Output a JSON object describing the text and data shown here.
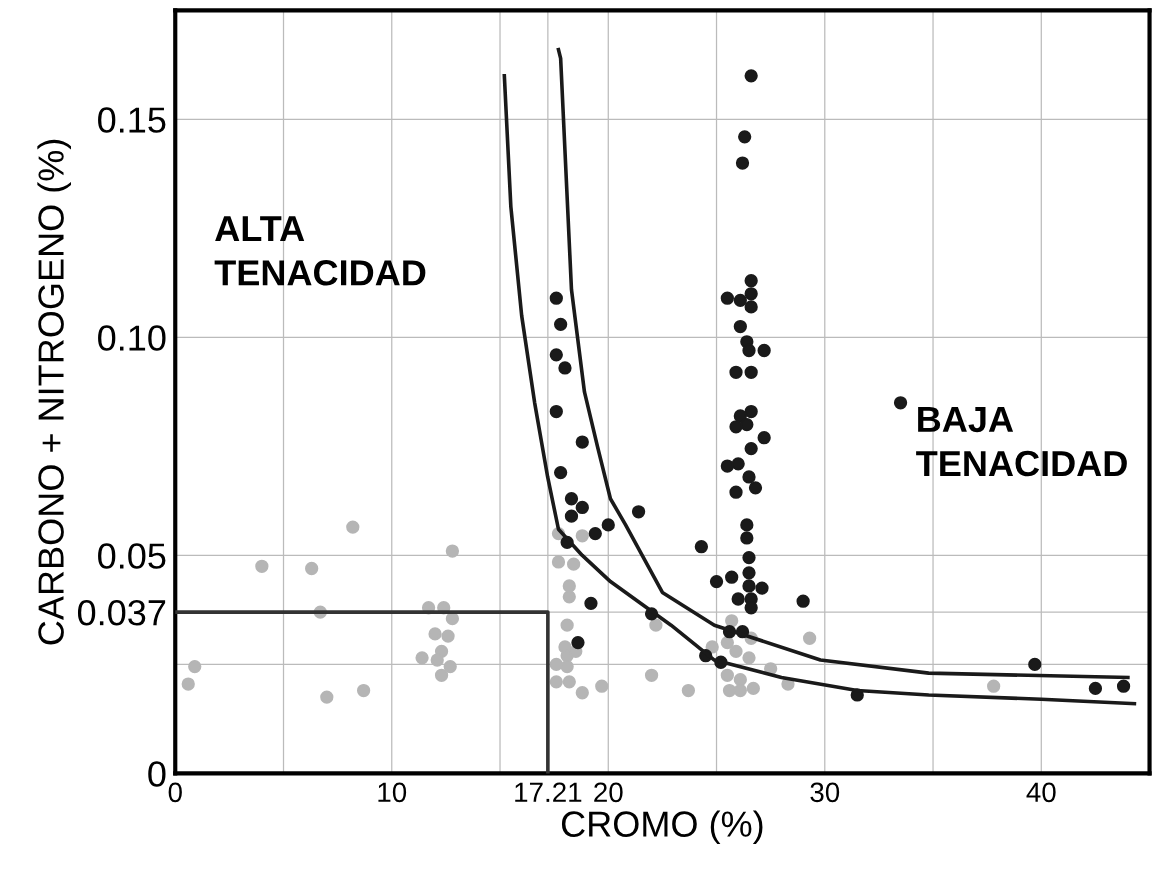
{
  "chart_data": {
    "type": "scatter",
    "xlabel": "CROMO (%)",
    "ylabel": "CARBONO + NITROGENO (%)",
    "xlim": [
      0,
      45
    ],
    "ylim": [
      0,
      0.175
    ],
    "xticks": [
      0,
      {
        "value": 5,
        "label": null
      },
      10,
      {
        "value": 15,
        "label": null
      },
      17.21,
      20,
      {
        "value": 25,
        "label": null
      },
      30,
      {
        "value": 35,
        "label": null
      },
      40
    ],
    "yticks": [
      0,
      {
        "value": 0.025,
        "label": null
      },
      0.037,
      0.05,
      {
        "value": 0.1,
        "label": "0.10"
      },
      0.15
    ],
    "grid": true,
    "annotations": [
      "ALTA\nTENACIDAD",
      "BAJA\nTENACIDAD"
    ],
    "series": [
      {
        "color": "#b5b5b5",
        "marker": "circle",
        "x": [
          8.2,
          12.8,
          4.0,
          6.3,
          6.7,
          11.7,
          12.4,
          12.8,
          12.0,
          12.6,
          12.3,
          11.4,
          12.1,
          12.7,
          12.3,
          0.9,
          0.6,
          8.7,
          7.0,
          17.7,
          18.4,
          18.2,
          18.2,
          18.1,
          18.0,
          18.1,
          18.5,
          17.6,
          18.1,
          17.6,
          18.2,
          18.8,
          17.7,
          22.2,
          22.0,
          19.7,
          18.8,
          25.7,
          25.5,
          24.8,
          25.9,
          26.5,
          26.6,
          27.5,
          25.5,
          26.1,
          26.7,
          25.6,
          26.1,
          23.7,
          28.3,
          29.3,
          37.8
        ],
        "values": [
          0.0565,
          0.051,
          0.0475,
          0.047,
          0.037,
          0.038,
          0.038,
          0.0355,
          0.032,
          0.0315,
          0.028,
          0.0265,
          0.026,
          0.0245,
          0.0225,
          0.0245,
          0.0205,
          0.019,
          0.0175,
          0.0485,
          0.048,
          0.043,
          0.0405,
          0.034,
          0.029,
          0.027,
          0.028,
          0.025,
          0.0245,
          0.021,
          0.021,
          0.0545,
          0.055,
          0.034,
          0.0225,
          0.02,
          0.0185,
          0.035,
          0.03,
          0.029,
          0.028,
          0.0265,
          0.031,
          0.024,
          0.0225,
          0.0215,
          0.0195,
          0.019,
          0.019,
          0.019,
          0.0205,
          0.031,
          0.02
        ]
      },
      {
        "color": "#1a1a1a",
        "marker": "circle",
        "x": [
          26.6,
          26.3,
          26.2,
          26.6,
          25.5,
          26.1,
          26.6,
          26.6,
          26.1,
          26.4,
          26.5,
          27.2,
          25.9,
          26.6,
          26.6,
          26.1,
          26.4,
          25.9,
          27.2,
          26.6,
          25.5,
          26.0,
          26.5,
          26.8,
          25.9,
          26.4,
          26.4,
          17.6,
          17.8,
          17.6,
          18.0,
          17.6,
          18.8,
          17.8,
          18.3,
          18.8,
          18.3,
          21.4,
          20.0,
          19.4,
          18.1,
          19.2,
          22.0,
          18.6,
          24.3,
          25.0,
          25.7,
          26.5,
          26.5,
          26.5,
          27.1,
          26.0,
          26.6,
          26.6,
          29.0,
          25.6,
          26.2,
          24.5,
          25.2,
          31.5,
          39.7,
          42.5,
          43.8,
          33.5
        ],
        "values": [
          0.16,
          0.146,
          0.14,
          0.113,
          0.109,
          0.1085,
          0.11,
          0.107,
          0.1025,
          0.099,
          0.097,
          0.097,
          0.092,
          0.092,
          0.083,
          0.082,
          0.08,
          0.0795,
          0.077,
          0.0745,
          0.0705,
          0.071,
          0.068,
          0.0655,
          0.0645,
          0.057,
          0.054,
          0.109,
          0.103,
          0.096,
          0.093,
          0.083,
          0.076,
          0.069,
          0.063,
          0.061,
          0.059,
          0.06,
          0.057,
          0.055,
          0.053,
          0.039,
          0.0366,
          0.03,
          0.052,
          0.044,
          0.045,
          0.0495,
          0.046,
          0.043,
          0.0425,
          0.04,
          0.04,
          0.038,
          0.0395,
          0.0325,
          0.0325,
          0.027,
          0.0255,
          0.018,
          0.025,
          0.0195,
          0.02,
          0.085
        ]
      },
      {
        "type": "line",
        "color": "#1a1a1a",
        "marker": "none",
        "x": [
          15.2,
          15.5,
          16.0,
          16.6,
          17.2,
          17.7,
          18.8,
          20.1,
          22.9,
          24.9,
          28.0,
          31.5,
          34.8,
          40.0,
          44.3
        ],
        "values": [
          0.16,
          0.13,
          0.105,
          0.085,
          0.068,
          0.056,
          0.05,
          0.044,
          0.034,
          0.026,
          0.022,
          0.019,
          0.018,
          0.017,
          0.016
        ]
      },
      {
        "type": "line",
        "color": "#1a1a1a",
        "marker": "none",
        "x": [
          17.7,
          17.8,
          18.3,
          18.9,
          19.5,
          20.1,
          20.8,
          22.5,
          24.9,
          29.8,
          34.8,
          44.0
        ],
        "values": [
          0.166,
          0.164,
          0.111,
          0.0875,
          0.075,
          0.063,
          0.057,
          0.0415,
          0.034,
          0.026,
          0.023,
          0.022
        ]
      },
      {
        "type": "line",
        "color": "#333333",
        "marker": "none",
        "x": [
          0,
          17.21,
          17.21
        ],
        "values": [
          0.037,
          0.037,
          0
        ]
      }
    ]
  }
}
